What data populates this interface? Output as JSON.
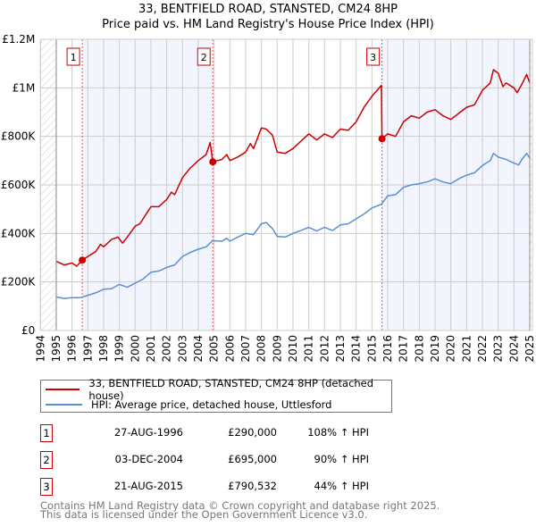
{
  "chart_data": {
    "type": "line",
    "title": "33, BENTFIELD ROAD, STANSTED, CM24 8HP",
    "subtitle": "Price paid vs. HM Land Registry's House Price Index (HPI)",
    "xlim": [
      1994,
      2025
    ],
    "ylim": [
      0,
      1200000
    ],
    "x_ticks": [
      "1994",
      "1995",
      "1996",
      "1997",
      "1998",
      "1999",
      "2000",
      "2001",
      "2002",
      "2003",
      "2004",
      "2005",
      "2006",
      "2007",
      "2008",
      "2009",
      "2010",
      "2011",
      "2012",
      "2013",
      "2014",
      "2015",
      "2016",
      "2017",
      "2018",
      "2019",
      "2020",
      "2021",
      "2022",
      "2023",
      "2024",
      "2025"
    ],
    "y_ticks": [
      {
        "v": 0,
        "label": "£0"
      },
      {
        "v": 200000,
        "label": "£200K"
      },
      {
        "v": 400000,
        "label": "£400K"
      },
      {
        "v": 600000,
        "label": "£600K"
      },
      {
        "v": 800000,
        "label": "£800K"
      },
      {
        "v": 1000000,
        "label": "£1M"
      },
      {
        "v": 1200000,
        "label": "£1.2M"
      }
    ],
    "grid": true,
    "series": [
      {
        "name": "33, BENTFIELD ROAD, STANSTED, CM24 8HP (detached house)",
        "color": "#cc0000",
        "x": [
          1995,
          1995.5,
          1996,
          1996.3,
          1996.65,
          1997,
          1997.5,
          1997.8,
          1998,
          1998.5,
          1998.9,
          1999.2,
          1999.5,
          2000,
          2000.3,
          2000.6,
          2001,
          2001.5,
          2002,
          2002.3,
          2002.5,
          2003,
          2003.5,
          2004,
          2004.5,
          2004.75,
          2004.92,
          2005.5,
          2005.8,
          2006,
          2006.5,
          2007,
          2007.3,
          2007.5,
          2008,
          2008.3,
          2008.7,
          2009,
          2009.5,
          2010,
          2010.5,
          2011,
          2011.5,
          2012,
          2012.5,
          2013,
          2013.5,
          2014,
          2014.5,
          2015,
          2015.6,
          2015.64,
          2016,
          2016.5,
          2017,
          2017.5,
          2018,
          2018.5,
          2019,
          2019.5,
          2020,
          2020.5,
          2021,
          2021.5,
          2022,
          2022.5,
          2022.7,
          2023,
          2023.3,
          2023.5,
          2024,
          2024.2,
          2024.5,
          2024.8,
          2025
        ],
        "y": [
          285000,
          270000,
          278000,
          265000,
          290000,
          305000,
          325000,
          355000,
          345000,
          375000,
          385000,
          360000,
          385000,
          430000,
          440000,
          470000,
          510000,
          510000,
          540000,
          570000,
          560000,
          630000,
          670000,
          700000,
          725000,
          775000,
          695000,
          705000,
          725000,
          700000,
          715000,
          735000,
          770000,
          750000,
          835000,
          830000,
          805000,
          735000,
          730000,
          750000,
          780000,
          810000,
          785000,
          810000,
          795000,
          830000,
          825000,
          860000,
          920000,
          965000,
          1010000,
          790532,
          810000,
          800000,
          860000,
          885000,
          875000,
          900000,
          910000,
          885000,
          870000,
          895000,
          920000,
          930000,
          990000,
          1020000,
          1075000,
          1060000,
          1005000,
          1020000,
          1000000,
          980000,
          1015000,
          1055000,
          1020000
        ]
      },
      {
        "name": "HPI: Average price, detached house, Uttlesford",
        "color": "#5b8fd4",
        "x": [
          1995,
          1995.5,
          1996,
          1996.5,
          1997,
          1997.5,
          1998,
          1998.5,
          1999,
          1999.5,
          2000,
          2000.5,
          2001,
          2001.5,
          2002,
          2002.5,
          2003,
          2003.5,
          2004,
          2004.5,
          2004.9,
          2005.5,
          2005.8,
          2006,
          2006.5,
          2007,
          2007.5,
          2008,
          2008.3,
          2008.7,
          2009,
          2009.5,
          2010,
          2010.5,
          2011,
          2011.5,
          2012,
          2012.5,
          2013,
          2013.5,
          2014,
          2014.5,
          2015,
          2015.6,
          2016,
          2016.5,
          2017,
          2017.5,
          2018,
          2018.5,
          2019,
          2019.5,
          2020,
          2020.5,
          2021,
          2021.5,
          2022,
          2022.5,
          2022.7,
          2023,
          2023.5,
          2024,
          2024.3,
          2024.5,
          2024.8,
          2025
        ],
        "y": [
          138000,
          132000,
          135000,
          135000,
          145000,
          155000,
          170000,
          172000,
          190000,
          178000,
          195000,
          212000,
          240000,
          245000,
          260000,
          270000,
          305000,
          322000,
          335000,
          345000,
          370000,
          368000,
          380000,
          368000,
          385000,
          400000,
          395000,
          440000,
          445000,
          420000,
          388000,
          385000,
          400000,
          412000,
          425000,
          410000,
          425000,
          412000,
          435000,
          440000,
          460000,
          480000,
          505000,
          520000,
          555000,
          560000,
          590000,
          600000,
          605000,
          612000,
          625000,
          612000,
          605000,
          625000,
          640000,
          650000,
          680000,
          700000,
          730000,
          715000,
          705000,
          690000,
          682000,
          705000,
          730000,
          710000
        ]
      }
    ],
    "sales": [
      {
        "n": "1",
        "x": 1996.65,
        "y": 290000
      },
      {
        "n": "2",
        "x": 2004.92,
        "y": 695000
      },
      {
        "n": "3",
        "x": 2015.64,
        "y": 790532
      }
    ],
    "legend": "below"
  },
  "legend": {
    "property": "33, BENTFIELD ROAD, STANSTED, CM24 8HP (detached house)",
    "hpi": "HPI: Average price, detached house, Uttlesford"
  },
  "transactions": [
    {
      "n": "1",
      "date": "27-AUG-1996",
      "price": "£290,000",
      "hpi": "108% ↑ HPI"
    },
    {
      "n": "2",
      "date": "03-DEC-2004",
      "price": "£695,000",
      "hpi": "90% ↑ HPI"
    },
    {
      "n": "3",
      "date": "21-AUG-2015",
      "price": "£790,532",
      "hpi": "44% ↑ HPI"
    }
  ],
  "footer": {
    "line1": "Contains HM Land Registry data © Crown copyright and database right 2025.",
    "line2": "This data is licensed under the Open Government Licence v3.0."
  }
}
